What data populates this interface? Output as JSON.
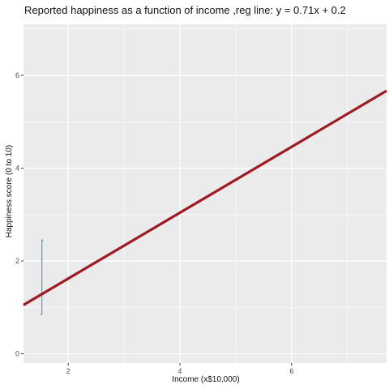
{
  "chart_data": {
    "type": "scatter",
    "title": "Reported happiness as a function of income ,reg line: y = 0.71x + 0.2",
    "xlabel": "Income (x$10,000)",
    "ylabel": "Happiness score (0 to 10)",
    "xlim": [
      1.2,
      7.7
    ],
    "ylim": [
      -0.2,
      7.1
    ],
    "x_ticks": [
      2,
      4,
      6
    ],
    "y_ticks": [
      0,
      2,
      4,
      6
    ],
    "x_tick_labels": [
      "2",
      "4",
      "6"
    ],
    "y_tick_labels": [
      "0",
      "2",
      "4",
      "6"
    ],
    "grid": true,
    "background": "#ebebeb",
    "grid_color": "#ffffff",
    "regression": {
      "slope": 0.71,
      "intercept": 0.2,
      "color": "#9e1b24"
    },
    "series": [
      {
        "color": "#3a8fc0",
        "points": [
          {
            "x": 1.52,
            "y": 0.85
          },
          {
            "x": 1.53,
            "y": 2.05
          },
          {
            "x": 1.54,
            "y": 2.45
          }
        ]
      }
    ]
  }
}
